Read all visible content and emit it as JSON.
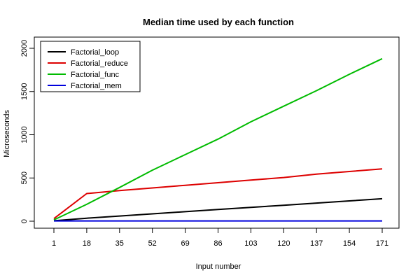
{
  "chart_data": {
    "type": "line",
    "title": "Median time used by each function",
    "xlabel": "Input number",
    "ylabel": "Microseconds",
    "x_ticks": [
      1,
      18,
      35,
      52,
      69,
      86,
      103,
      120,
      137,
      154,
      171
    ],
    "y_ticks": [
      0,
      500,
      1000,
      1500,
      2000
    ],
    "xlim": [
      1,
      171
    ],
    "ylim": [
      0,
      2000
    ],
    "legend_position": "top-left",
    "grid": false,
    "series": [
      {
        "name": "Factorial_loop",
        "color": "#000000",
        "x": [
          1,
          18,
          35,
          52,
          69,
          86,
          103,
          120,
          137,
          154,
          171
        ],
        "y": [
          5,
          35,
          60,
          85,
          110,
          135,
          160,
          185,
          210,
          235,
          260
        ]
      },
      {
        "name": "Factorial_reduce",
        "color": "#dd0000",
        "x": [
          1,
          18,
          35,
          52,
          69,
          86,
          103,
          120,
          137,
          154,
          171
        ],
        "y": [
          30,
          320,
          355,
          385,
          415,
          445,
          475,
          505,
          545,
          575,
          605
        ]
      },
      {
        "name": "Factorial_func",
        "color": "#00bb00",
        "x": [
          1,
          18,
          35,
          52,
          69,
          86,
          103,
          120,
          137,
          154,
          171
        ],
        "y": [
          15,
          195,
          390,
          590,
          770,
          950,
          1150,
          1330,
          1510,
          1700,
          1880
        ]
      },
      {
        "name": "Factorial_mem",
        "color": "#0000dd",
        "x": [
          1,
          18,
          35,
          52,
          69,
          86,
          103,
          120,
          137,
          154,
          171
        ],
        "y": [
          3,
          3,
          3,
          3,
          3,
          3,
          3,
          3,
          3,
          3,
          3
        ]
      }
    ]
  }
}
